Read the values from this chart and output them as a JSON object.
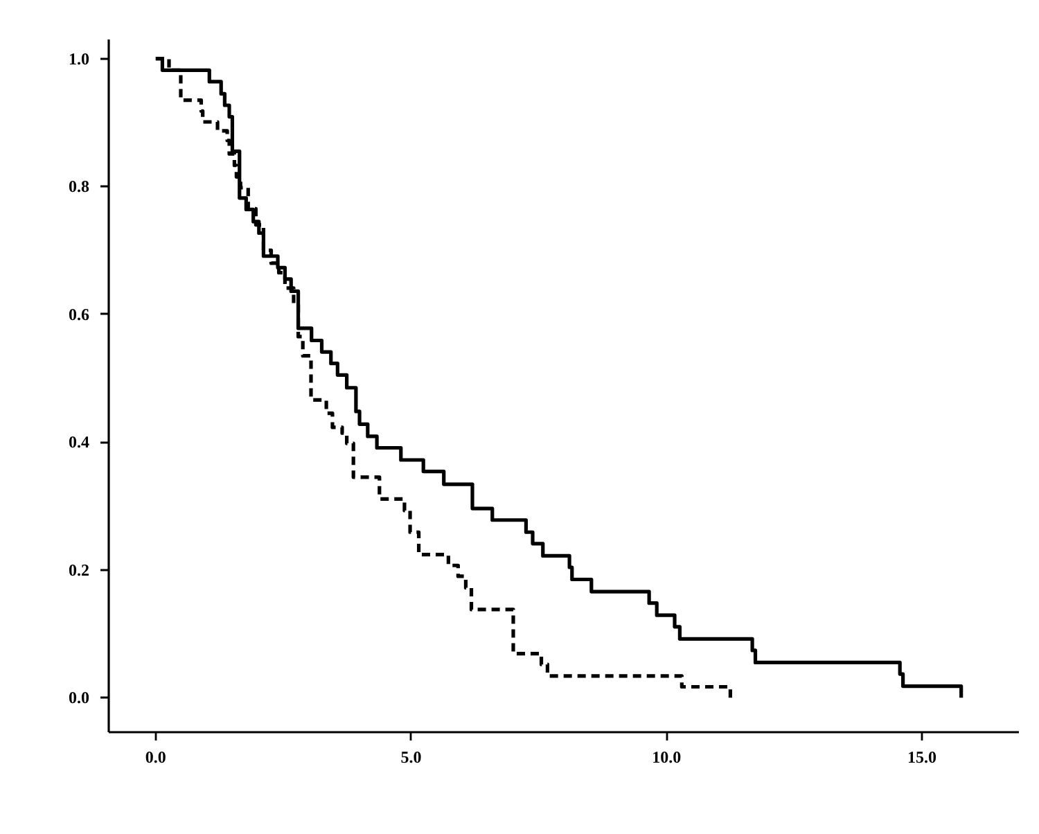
{
  "chart_data": {
    "type": "step",
    "xlim": [
      -0.92,
      16.9
    ],
    "ylim": [
      -0.054,
      1.03
    ],
    "xticks": [
      {
        "value": 0,
        "label": "0.0"
      },
      {
        "value": 5,
        "label": "5.0"
      },
      {
        "value": 10,
        "label": "10.0"
      },
      {
        "value": 15,
        "label": "15.0"
      }
    ],
    "yticks": [
      {
        "value": 0,
        "label": "0.0"
      },
      {
        "value": 0.2,
        "label": "0.2"
      },
      {
        "value": 0.4,
        "label": "0.4"
      },
      {
        "value": 0.6,
        "label": "0.6"
      },
      {
        "value": 0.8,
        "label": "0.8"
      },
      {
        "value": 1.0,
        "label": "1.0"
      }
    ],
    "grid": false,
    "series": [
      {
        "color": "#000000",
        "line_style": "solid",
        "x": [
          0,
          0.13,
          1.05,
          1.28,
          1.35,
          1.44,
          1.5,
          1.64,
          1.77,
          1.91,
          2.02,
          2.11,
          2.39,
          2.53,
          2.65,
          2.79,
          3.05,
          3.25,
          3.43,
          3.56,
          3.74,
          3.92,
          3.99,
          4.15,
          4.33,
          4.8,
          5.24,
          5.64,
          6.2,
          6.59,
          7.25,
          7.38,
          7.58,
          8.1,
          8.15,
          8.53,
          9.66,
          9.81,
          10.16,
          10.26,
          11.68,
          11.74,
          14.57,
          14.63,
          15.77
        ],
        "values": [
          1.0,
          0.982,
          0.964,
          0.945,
          0.927,
          0.909,
          0.855,
          0.782,
          0.764,
          0.745,
          0.727,
          0.691,
          0.673,
          0.655,
          0.636,
          0.578,
          0.559,
          0.541,
          0.523,
          0.505,
          0.485,
          0.448,
          0.428,
          0.409,
          0.391,
          0.372,
          0.354,
          0.334,
          0.296,
          0.278,
          0.259,
          0.241,
          0.222,
          0.204,
          0.185,
          0.166,
          0.148,
          0.129,
          0.111,
          0.092,
          0.074,
          0.055,
          0.037,
          0.018,
          0.0
        ]
      },
      {
        "color": "#000000",
        "line_style": "dashed",
        "x": [
          0,
          0.26,
          0.49,
          0.89,
          0.92,
          1.21,
          1.4,
          1.44,
          1.54,
          1.58,
          1.66,
          1.81,
          1.96,
          2.11,
          2.26,
          2.41,
          2.53,
          2.7,
          2.79,
          2.88,
          3.04,
          3.34,
          3.46,
          3.65,
          3.74,
          3.87,
          4.38,
          4.87,
          4.98,
          5.15,
          5.73,
          5.92,
          6.07,
          6.18,
          7.0,
          7.55,
          7.67,
          10.3,
          11.25
        ],
        "values": [
          1.0,
          0.982,
          0.935,
          0.918,
          0.901,
          0.887,
          0.872,
          0.851,
          0.833,
          0.815,
          0.798,
          0.765,
          0.74,
          0.7,
          0.68,
          0.665,
          0.641,
          0.615,
          0.565,
          0.535,
          0.466,
          0.445,
          0.423,
          0.414,
          0.398,
          0.345,
          0.311,
          0.293,
          0.259,
          0.224,
          0.207,
          0.19,
          0.172,
          0.138,
          0.069,
          0.052,
          0.034,
          0.017,
          0.0
        ]
      }
    ]
  }
}
